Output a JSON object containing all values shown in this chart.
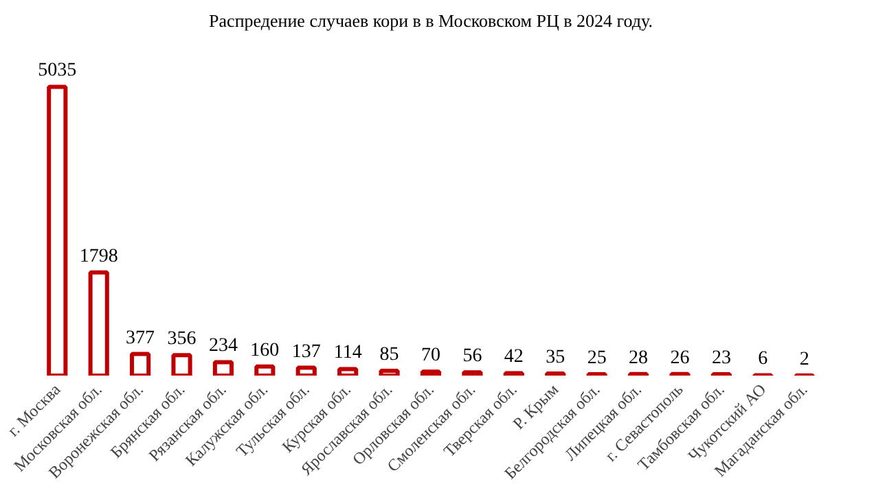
{
  "chart_data": {
    "type": "bar",
    "title": "Распредение случаев кори в в Московском РЦ в 2024 году.",
    "categories": [
      "г. Москва",
      "Московская обл.",
      "Воронежская обл.",
      "Брянская обл.",
      "Рязанская обл.",
      "Калужская обл.",
      "Тульская обл.",
      "Курская обл.",
      "Ярославская обл.",
      "Орловская обл.",
      "Смоленская обл.",
      "Тверская обл.",
      "Р. Крым",
      "Белгородская обл.",
      "Липецкая обл.",
      "г. Севастополь",
      "Тамбовская обл.",
      "Чукотский АО",
      "Магаданская обл."
    ],
    "values": [
      5035,
      1798,
      377,
      356,
      234,
      160,
      137,
      114,
      85,
      70,
      56,
      42,
      35,
      25,
      28,
      26,
      23,
      6,
      2
    ],
    "color": "#c00000",
    "data_labels": true
  }
}
